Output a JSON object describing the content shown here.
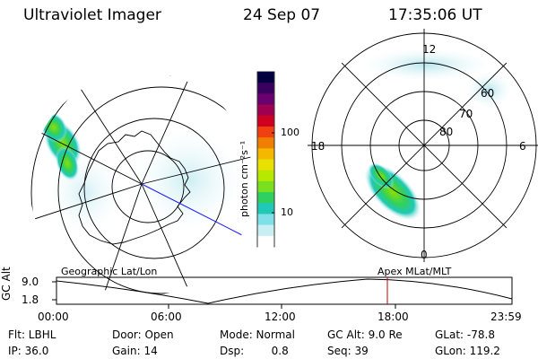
{
  "header": {
    "instrument": "Ultraviolet Imager",
    "date": "24 Sep 07",
    "time": "17:35:06 UT"
  },
  "left_panel": {
    "caption": "Geographic Lat/Lon"
  },
  "right_panel": {
    "caption": "Apex MLat/MLT",
    "mlt_labels": [
      "12",
      "18",
      "6",
      "0"
    ],
    "lat_labels": [
      "60",
      "70",
      "80"
    ]
  },
  "colorbar": {
    "unit_label": "photon cm⁻²s⁻¹",
    "ticks": [
      "100",
      "10"
    ],
    "colors": [
      "#000040",
      "#3a0060",
      "#6a006f",
      "#a00050",
      "#d00020",
      "#f04010",
      "#f07e00",
      "#f4b800",
      "#e8e000",
      "#b8e800",
      "#78e020",
      "#30d060",
      "#20c8b8",
      "#80e0e8",
      "#c8f0f4",
      "#ffffff"
    ]
  },
  "altitude_plot": {
    "ylabel": "GC Alt",
    "yticks": [
      "9.0",
      "1.8"
    ],
    "xticks": [
      "00:00",
      "06:00",
      "12:00",
      "18:00",
      "23:59"
    ],
    "marker_color": "#c00000",
    "marker_time": "17:35"
  },
  "footer": {
    "filter": "Flt: LBHL",
    "ip": "IP: 36.0",
    "door": "Door: Open",
    "gain": "Gain: 14",
    "mode": "Mode: Normal",
    "dsp": "Dsp:        0.8",
    "gc_alt": "GC Alt: 9.0 Re",
    "seq": "Seq: 39",
    "glat": "GLat: -78.8",
    "glon": "GLon: 119.2"
  }
}
